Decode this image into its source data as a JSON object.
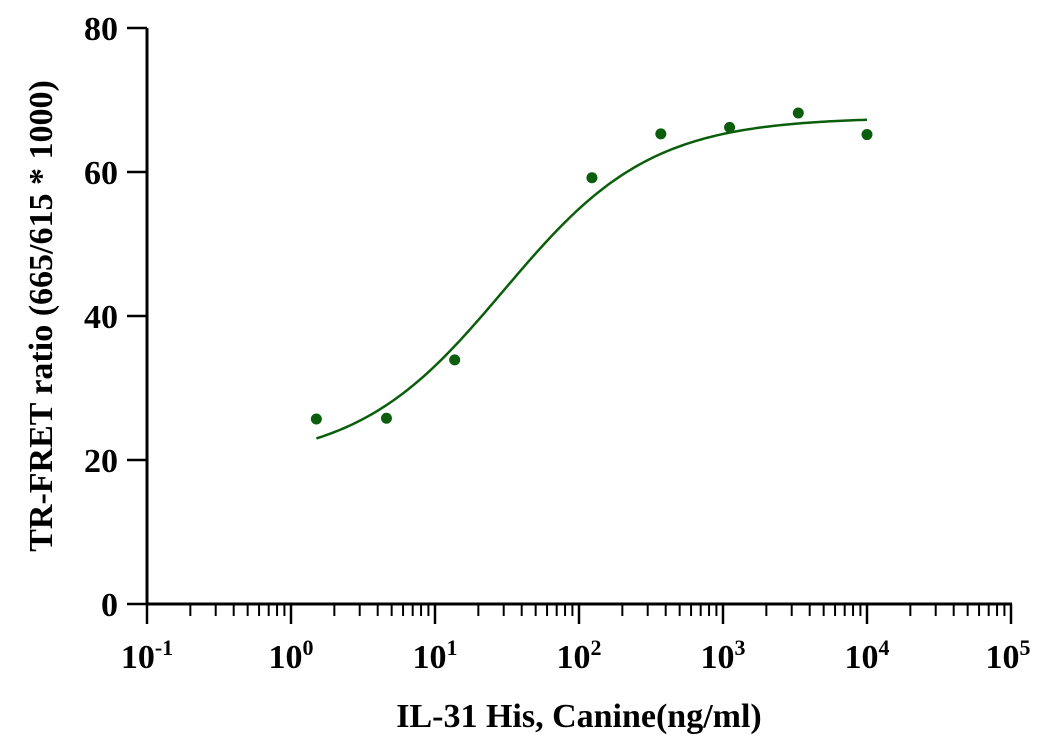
{
  "chart_data": {
    "type": "scatter",
    "xlabel": "IL-31 His, Canine(ng/ml)",
    "ylabel": "TR-FRET ratio (665/615 * 1000)",
    "x_scale": "log10",
    "xlim": [
      0.1,
      100000
    ],
    "ylim": [
      0,
      80
    ],
    "x_ticks": [
      {
        "base": "10",
        "exp": "-1"
      },
      {
        "base": "10",
        "exp": "0"
      },
      {
        "base": "10",
        "exp": "1"
      },
      {
        "base": "10",
        "exp": "2"
      },
      {
        "base": "10",
        "exp": "3"
      },
      {
        "base": "10",
        "exp": "4"
      },
      {
        "base": "10",
        "exp": "5"
      }
    ],
    "y_ticks": [
      "0",
      "20",
      "40",
      "60",
      "80"
    ],
    "color": "#0b5e0b",
    "points": {
      "x": [
        1.5,
        4.6,
        13.7,
        123,
        370,
        1111,
        3333,
        10000
      ],
      "y": [
        25.7,
        25.8,
        33.9,
        59.2,
        65.3,
        66.2,
        68.2,
        65.2
      ]
    },
    "fit": {
      "model": "four-parameter logistic",
      "bottom": 19.5,
      "top": 67.6,
      "ec50": 30,
      "hill": 0.85,
      "x_range": [
        1.5,
        10000
      ]
    }
  }
}
